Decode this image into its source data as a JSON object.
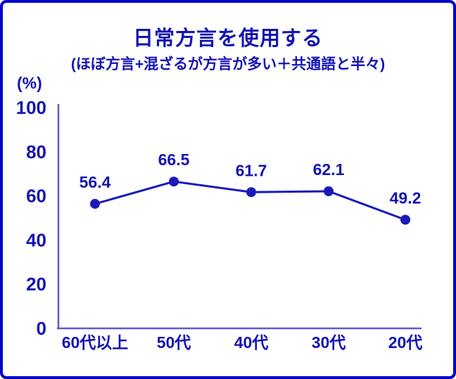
{
  "frame": {
    "border_color": "#0000cc",
    "background_color": "#ffffff"
  },
  "header": {
    "title": "日常方言を使用する",
    "subtitle": "(ほぼ方言+混ざるが方言が多い＋共通語と半々)"
  },
  "chart_data": {
    "type": "line",
    "title": "日常方言を使用する",
    "subtitle": "(ほぼ方言+混ざるが方言が多い＋共通語と半々)",
    "unit_label": "(%)",
    "categories": [
      "60代以上",
      "50代",
      "40代",
      "30代",
      "20代"
    ],
    "values": [
      56.4,
      66.5,
      61.7,
      62.1,
      49.2
    ],
    "xlabel": "",
    "ylabel": "(%)",
    "ylim": [
      0,
      100
    ],
    "yticks": [
      0,
      20,
      40,
      60,
      80,
      100
    ],
    "grid": false,
    "legend": "none",
    "colors": {
      "line": "#1a1ab8",
      "point": "#1a1ab8",
      "text": "#1414b4",
      "axis": "#5b5bd0",
      "border": "#0000cc"
    }
  }
}
